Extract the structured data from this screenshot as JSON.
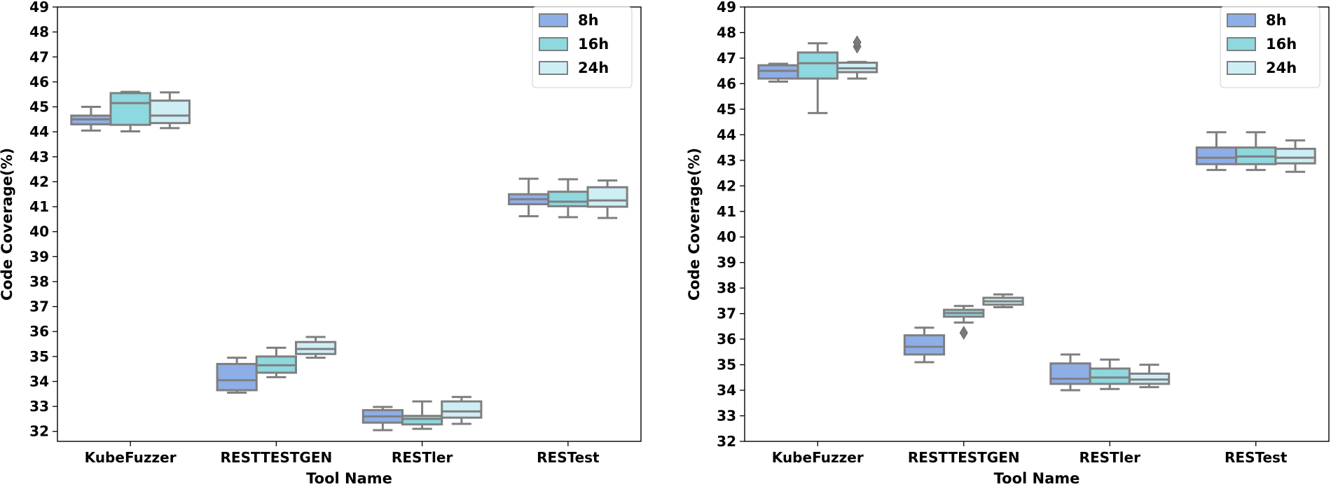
{
  "chart_data": [
    {
      "type": "box",
      "xlabel": "Tool Name",
      "ylabel": "Code Coverage(%)",
      "ylim": [
        31.6,
        49
      ],
      "yticks": [
        32,
        33,
        34,
        35,
        36,
        37,
        38,
        39,
        40,
        41,
        42,
        43,
        44,
        45,
        46,
        47,
        48,
        49
      ],
      "grid": false,
      "legend_position": "top-right",
      "categories": [
        "KubeFuzzer",
        "RESTTESTGEN",
        "RESTler",
        "RESTest"
      ],
      "series": [
        {
          "name": "8h",
          "color": "#8eaee8",
          "boxes": [
            {
              "min": 44.05,
              "q1": 44.3,
              "median": 44.5,
              "q3": 44.65,
              "max": 45.0,
              "outliers": []
            },
            {
              "min": 33.55,
              "q1": 33.65,
              "median": 34.05,
              "q3": 34.7,
              "max": 34.95,
              "outliers": []
            },
            {
              "min": 32.05,
              "q1": 32.35,
              "median": 32.6,
              "q3": 32.85,
              "max": 32.98,
              "outliers": []
            },
            {
              "min": 40.62,
              "q1": 41.1,
              "median": 41.3,
              "q3": 41.5,
              "max": 42.12,
              "outliers": []
            }
          ]
        },
        {
          "name": "16h",
          "color": "#8ed8df",
          "boxes": [
            {
              "min": 44.02,
              "q1": 44.28,
              "median": 45.15,
              "q3": 45.55,
              "max": 45.6,
              "outliers": []
            },
            {
              "min": 34.17,
              "q1": 34.35,
              "median": 34.65,
              "q3": 35.0,
              "max": 35.35,
              "outliers": []
            },
            {
              "min": 32.1,
              "q1": 32.28,
              "median": 32.5,
              "q3": 32.62,
              "max": 33.2,
              "outliers": []
            },
            {
              "min": 40.58,
              "q1": 41.02,
              "median": 41.2,
              "q3": 41.6,
              "max": 42.1,
              "outliers": []
            }
          ]
        },
        {
          "name": "24h",
          "color": "#cdeef4",
          "boxes": [
            {
              "min": 44.15,
              "q1": 44.35,
              "median": 44.65,
              "q3": 45.25,
              "max": 45.58,
              "outliers": []
            },
            {
              "min": 34.95,
              "q1": 35.1,
              "median": 35.3,
              "q3": 35.58,
              "max": 35.78,
              "outliers": []
            },
            {
              "min": 32.3,
              "q1": 32.55,
              "median": 32.8,
              "q3": 33.2,
              "max": 33.38,
              "outliers": []
            },
            {
              "min": 40.55,
              "q1": 41.0,
              "median": 41.25,
              "q3": 41.78,
              "max": 42.05,
              "outliers": []
            }
          ]
        }
      ]
    },
    {
      "type": "box",
      "xlabel": "Tool Name",
      "ylabel": "Code Coverage(%)",
      "ylim": [
        32,
        49
      ],
      "yticks": [
        32,
        33,
        34,
        35,
        36,
        37,
        38,
        39,
        40,
        41,
        42,
        43,
        44,
        45,
        46,
        47,
        48,
        49
      ],
      "grid": false,
      "legend_position": "top-right",
      "categories": [
        "KubeFuzzer",
        "RESTTESTGEN",
        "RESTler",
        "RESTest"
      ],
      "series": [
        {
          "name": "8h",
          "color": "#8eaee8",
          "boxes": [
            {
              "min": 46.08,
              "q1": 46.2,
              "median": 46.5,
              "q3": 46.72,
              "max": 46.78,
              "outliers": []
            },
            {
              "min": 35.1,
              "q1": 35.4,
              "median": 35.7,
              "q3": 36.15,
              "max": 36.45,
              "outliers": []
            },
            {
              "min": 34.0,
              "q1": 34.25,
              "median": 34.45,
              "q3": 35.05,
              "max": 35.4,
              "outliers": []
            },
            {
              "min": 42.62,
              "q1": 42.85,
              "median": 43.1,
              "q3": 43.5,
              "max": 44.1,
              "outliers": []
            }
          ]
        },
        {
          "name": "16h",
          "color": "#8ed8df",
          "boxes": [
            {
              "min": 44.85,
              "q1": 46.2,
              "median": 46.8,
              "q3": 47.22,
              "max": 47.58,
              "outliers": []
            },
            {
              "min": 36.65,
              "q1": 36.88,
              "median": 37.02,
              "q3": 37.15,
              "max": 37.3,
              "outliers": [
                36.25
              ]
            },
            {
              "min": 34.05,
              "q1": 34.25,
              "median": 34.5,
              "q3": 34.85,
              "max": 35.2,
              "outliers": []
            },
            {
              "min": 42.62,
              "q1": 42.85,
              "median": 43.15,
              "q3": 43.5,
              "max": 44.1,
              "outliers": []
            }
          ]
        },
        {
          "name": "24h",
          "color": "#cdeef4",
          "boxes": [
            {
              "min": 46.2,
              "q1": 46.45,
              "median": 46.6,
              "q3": 46.82,
              "max": 46.85,
              "outliers": [
                47.45,
                47.62
              ]
            },
            {
              "min": 37.25,
              "q1": 37.35,
              "median": 37.48,
              "q3": 37.62,
              "max": 37.75,
              "outliers": []
            },
            {
              "min": 34.12,
              "q1": 34.25,
              "median": 34.42,
              "q3": 34.65,
              "max": 35.0,
              "outliers": []
            },
            {
              "min": 42.55,
              "q1": 42.88,
              "median": 43.1,
              "q3": 43.45,
              "max": 43.78,
              "outliers": []
            }
          ]
        }
      ]
    }
  ]
}
